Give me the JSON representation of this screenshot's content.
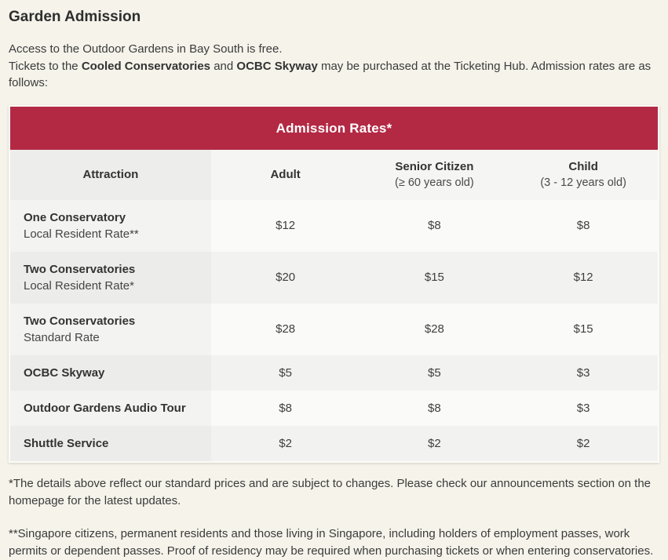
{
  "page": {
    "title": "Garden Admission",
    "intro": {
      "line1": "Access to the Outdoor Gardens in Bay South is free.",
      "line2_pre": "Tickets to the ",
      "line2_bold1": "Cooled Conservatories",
      "line2_mid": " and ",
      "line2_bold2": "OCBC Skyway",
      "line2_post": " may be purchased at the Ticketing Hub. Admission rates are as follows:"
    }
  },
  "table": {
    "title": "Admission Rates*",
    "columns": [
      {
        "label": "Attraction",
        "sublabel": ""
      },
      {
        "label": "Adult",
        "sublabel": ""
      },
      {
        "label": "Senior Citizen",
        "sublabel": "(≥ 60 years old)"
      },
      {
        "label": "Child",
        "sublabel": "(3 - 12 years old)"
      }
    ],
    "rows": [
      {
        "name": "One Conservatory",
        "subname": "Local Resident Rate**",
        "adult": "$12",
        "senior": "$8",
        "child": "$8"
      },
      {
        "name": "Two Conservatories",
        "subname": "Local Resident Rate*",
        "adult": "$20",
        "senior": "$15",
        "child": "$12"
      },
      {
        "name": "Two Conservatories",
        "subname": "Standard Rate",
        "adult": "$28",
        "senior": "$28",
        "child": "$15"
      },
      {
        "name": "OCBC Skyway",
        "subname": "",
        "adult": "$5",
        "senior": "$5",
        "child": "$3"
      },
      {
        "name": "Outdoor Gardens Audio Tour",
        "subname": "",
        "adult": "$8",
        "senior": "$8",
        "child": "$3"
      },
      {
        "name": "Shuttle Service",
        "subname": "",
        "adult": "$2",
        "senior": "$2",
        "child": "$2"
      }
    ]
  },
  "footnotes": [
    "*The details above reflect our standard prices and are subject to changes. Please check our announcements section on the homepage for the latest updates.",
    "**Singapore citizens, permanent residents and those living in Singapore, including holders of employment passes, work permits or dependent passes. Proof of residency may be required when purchasing tickets or when entering conservatories."
  ],
  "colors": {
    "accent_red": "#b32944",
    "page_background": "#f5f3ea"
  }
}
